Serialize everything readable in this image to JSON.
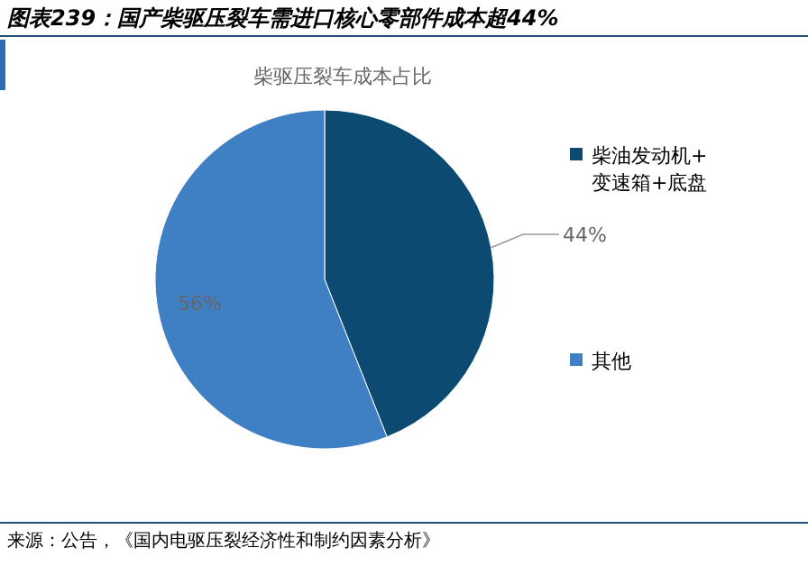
{
  "chart_data": {
    "type": "pie",
    "title": "图表239：国产柴驱压裂车需进口核心零部件成本超44%",
    "subtitle": "柴驱压裂车成本占比",
    "categories": [
      "柴油发动机+变速箱+底盘",
      "其他"
    ],
    "values": [
      44,
      56
    ],
    "colors": [
      "#0c4a72",
      "#3f80c4"
    ],
    "value_labels": [
      "44%",
      "56%"
    ],
    "legend": "right",
    "annotations": [
      "来源：公告，《国内电驱压裂经济性和制约因素分析》"
    ]
  }
}
